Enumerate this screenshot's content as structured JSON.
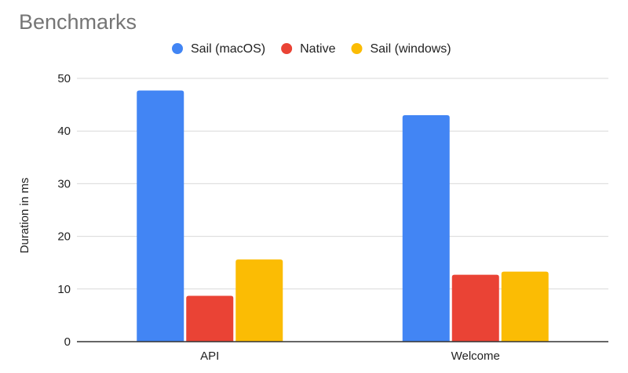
{
  "chart_data": {
    "type": "bar",
    "title": "Benchmarks",
    "xlabel": "",
    "ylabel": "Duration in ms",
    "categories": [
      "API",
      "Welcome"
    ],
    "series": [
      {
        "name": "Sail (macOS)",
        "color": "#4285f4",
        "values": [
          47.7,
          43.0
        ]
      },
      {
        "name": "Native",
        "color": "#ea4335",
        "values": [
          8.7,
          12.7
        ]
      },
      {
        "name": "Sail (windows)",
        "color": "#fbbc04",
        "values": [
          15.6,
          13.3
        ]
      }
    ],
    "ylim": [
      0,
      50
    ],
    "yticks": [
      0,
      10,
      20,
      30,
      40,
      50
    ],
    "grid": true,
    "legend_position": "top-center"
  }
}
